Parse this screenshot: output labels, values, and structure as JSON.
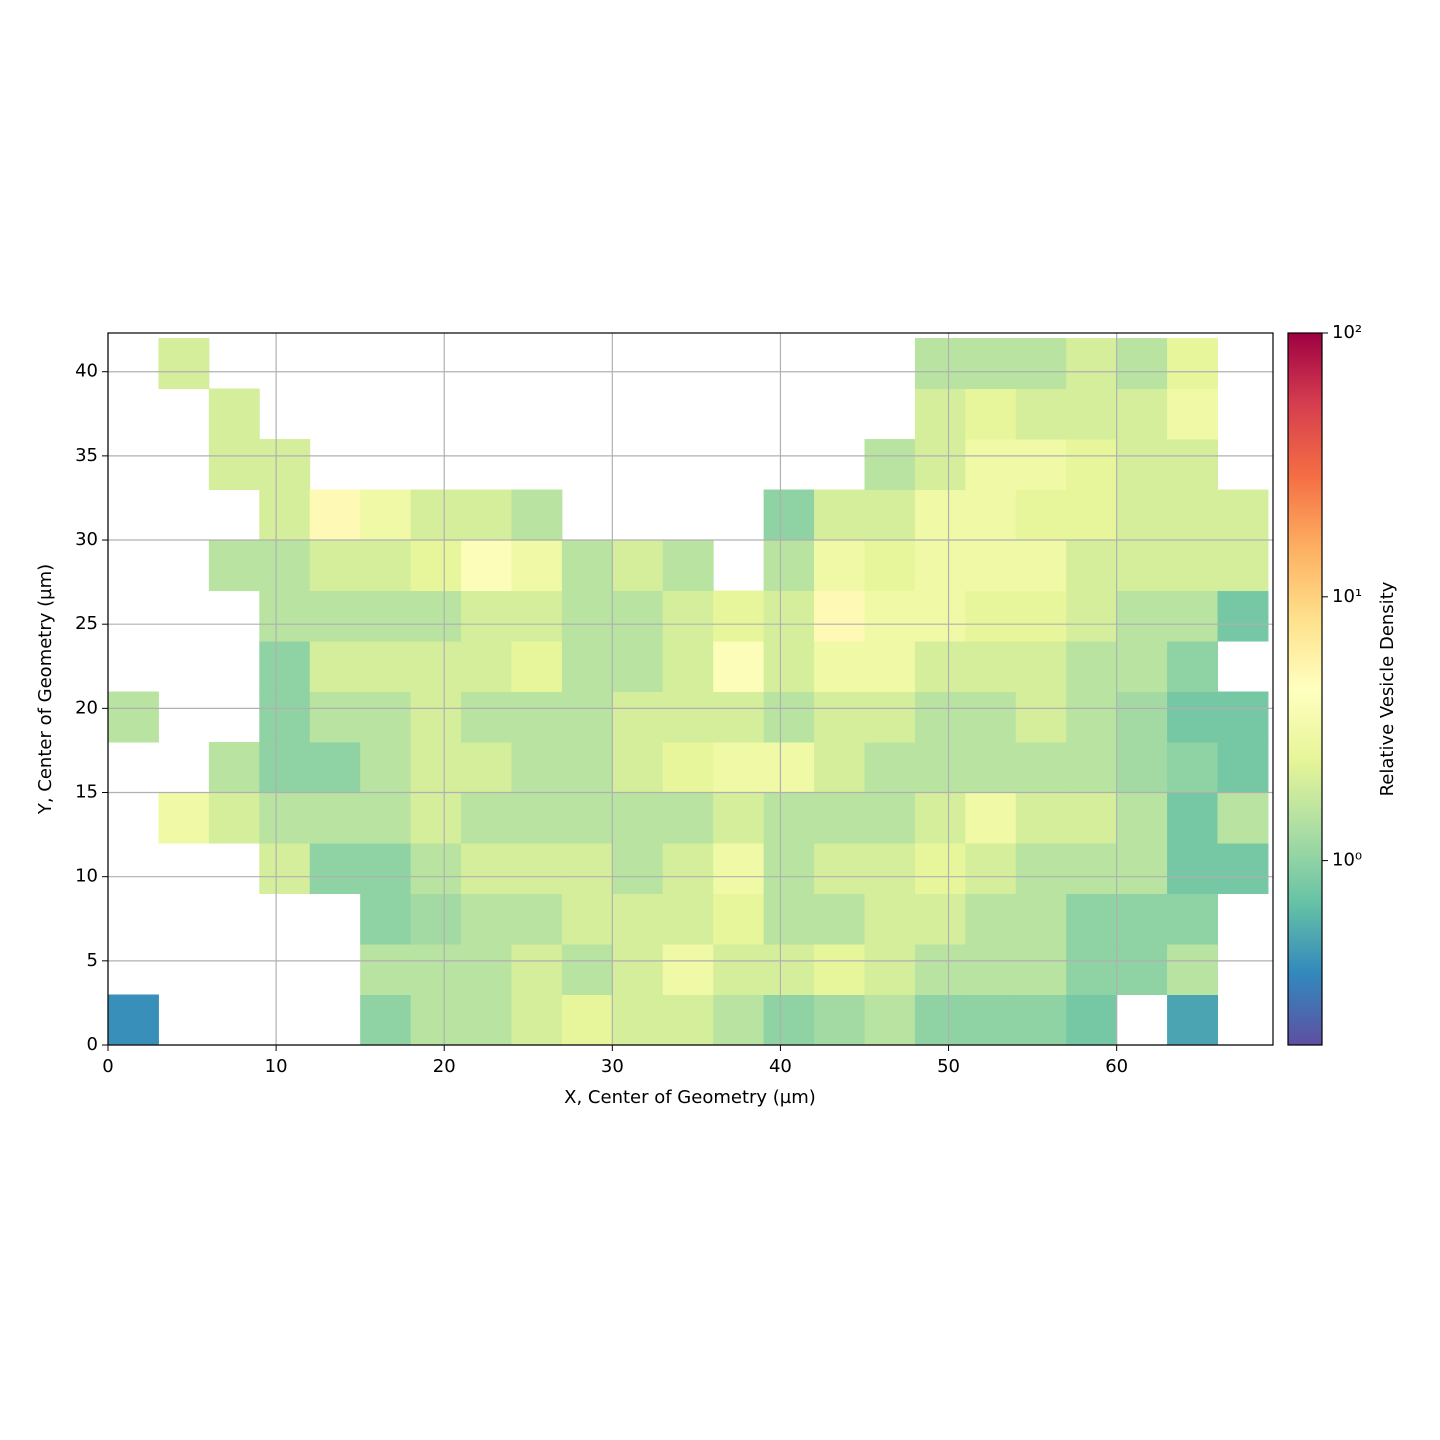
{
  "chart_data": {
    "type": "heatmap",
    "x_label": "X, Center of Geometry (µm)",
    "y_label": "Y, Center of Geometry (µm)",
    "colorbar_label": "Relative Vesicle Density",
    "xlim": [
      0,
      69.3
    ],
    "ylim": [
      0,
      42.3
    ],
    "xticks": [
      0,
      10,
      20,
      30,
      40,
      50,
      60
    ],
    "yticks": [
      0,
      5,
      10,
      15,
      20,
      25,
      30,
      35,
      40
    ],
    "grid": true,
    "clim": [
      0.2,
      100
    ],
    "clog": true,
    "cticks": [
      {
        "value": 1,
        "label": "10⁰"
      },
      {
        "value": 10,
        "label": "10¹"
      },
      {
        "value": 100,
        "label": "10²"
      }
    ],
    "colormap": [
      "#5e4fa2",
      "#3288bd",
      "#66c2a5",
      "#abdda4",
      "#e6f598",
      "#ffffbf",
      "#fee08b",
      "#fdae61",
      "#f46d43",
      "#d53e4f",
      "#9e0142"
    ],
    "xbins": [
      0,
      3,
      6,
      9,
      12,
      15,
      18,
      21,
      24,
      27,
      30,
      33,
      36,
      39,
      42,
      45,
      48,
      51,
      54,
      57,
      60,
      63,
      66,
      69
    ],
    "ybins": [
      0,
      3,
      6,
      9,
      12,
      15,
      18,
      21,
      24,
      27,
      30,
      33,
      36,
      39,
      42
    ],
    "z": [
      [
        0.4,
        null,
        null,
        null,
        null,
        1,
        1.5,
        1.5,
        2,
        2.5,
        2,
        2,
        1.5,
        1,
        1.2,
        1.5,
        1,
        1,
        1,
        0.8,
        null,
        0.5,
        null
      ],
      [
        null,
        null,
        null,
        null,
        null,
        1.5,
        1.5,
        1.5,
        2,
        1.5,
        2,
        3,
        2,
        2,
        2.5,
        2,
        1.5,
        1.5,
        1.5,
        1,
        1,
        1.5,
        null
      ],
      [
        null,
        null,
        null,
        null,
        null,
        1,
        1.2,
        1.5,
        1.5,
        2,
        2,
        2,
        2.5,
        1.5,
        1.5,
        2,
        2,
        1.5,
        1.5,
        1,
        1,
        1,
        null
      ],
      [
        null,
        null,
        null,
        2,
        1,
        1,
        1.5,
        2,
        2,
        2,
        1.5,
        2,
        3,
        1.5,
        2,
        2,
        2.5,
        2,
        1.5,
        1.5,
        1.5,
        0.8,
        0.8
      ],
      [
        null,
        3,
        2,
        1.5,
        1.5,
        1.5,
        2,
        1.5,
        1.5,
        1.5,
        1.5,
        1.5,
        2,
        1.5,
        1.5,
        1.5,
        2,
        3,
        2,
        2,
        1.5,
        0.8,
        1.5
      ],
      [
        null,
        null,
        1.5,
        1,
        1,
        1.5,
        2,
        2,
        1.5,
        1.5,
        2,
        2.5,
        3,
        3,
        2,
        1.5,
        1.5,
        1.5,
        1.5,
        1.5,
        1.2,
        1,
        0.8
      ],
      [
        1.5,
        null,
        null,
        1,
        1.5,
        1.5,
        2,
        1.5,
        1.5,
        1.5,
        2,
        2,
        2,
        1.5,
        2,
        2,
        1.5,
        1.5,
        2,
        1.5,
        1.2,
        0.8,
        0.8
      ],
      [
        null,
        null,
        null,
        1,
        2,
        2,
        2,
        2,
        2.5,
        1.5,
        1.5,
        2,
        4,
        2,
        3,
        3,
        2,
        2,
        2,
        1.5,
        1.5,
        1,
        null
      ],
      [
        null,
        null,
        null,
        1.5,
        1.5,
        1.5,
        1.5,
        2,
        2,
        1.5,
        1.5,
        2,
        2.5,
        2,
        5,
        3,
        3,
        2.5,
        2.5,
        2,
        1.5,
        1.5,
        0.8
      ],
      [
        null,
        null,
        1.5,
        1.5,
        2,
        2,
        2.5,
        4,
        3,
        1.5,
        2,
        1.5,
        null,
        1.5,
        3,
        2.5,
        3,
        3,
        3,
        2,
        2,
        2,
        2
      ],
      [
        null,
        null,
        null,
        2,
        5,
        3,
        2,
        2,
        1.5,
        null,
        null,
        null,
        null,
        1,
        2,
        2,
        3,
        3,
        2.5,
        2.5,
        2,
        2,
        2
      ],
      [
        null,
        null,
        2,
        2,
        null,
        null,
        null,
        null,
        null,
        null,
        null,
        null,
        null,
        null,
        null,
        1.5,
        2,
        3,
        3,
        2.5,
        2,
        2,
        null
      ],
      [
        null,
        null,
        2,
        null,
        null,
        null,
        null,
        null,
        null,
        null,
        null,
        null,
        null,
        null,
        null,
        null,
        2,
        2.5,
        2,
        2,
        2,
        3,
        null
      ],
      [
        null,
        2,
        null,
        null,
        null,
        null,
        null,
        null,
        null,
        null,
        null,
        null,
        null,
        null,
        null,
        null,
        1.5,
        1.5,
        1.5,
        2,
        1.5,
        2.5,
        null
      ]
    ]
  }
}
